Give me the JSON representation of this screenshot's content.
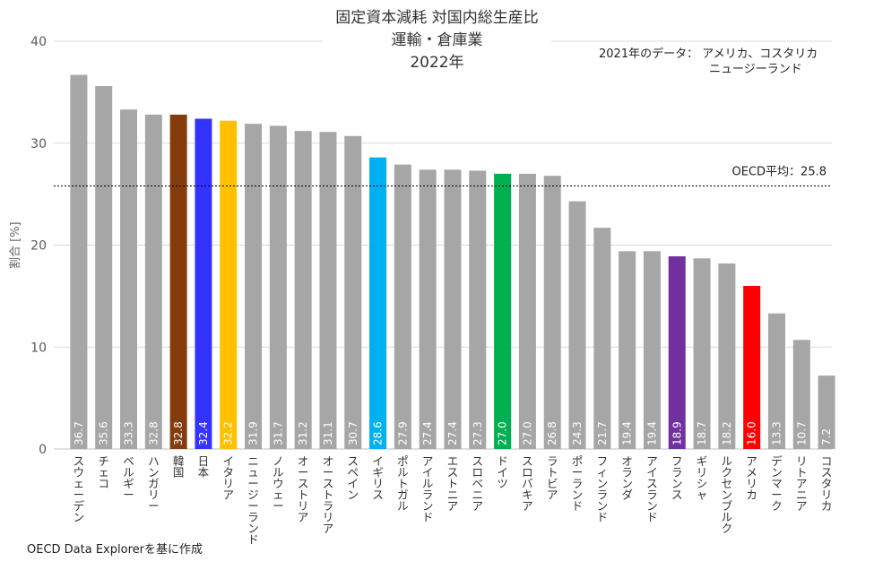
{
  "chart_data": {
    "type": "bar",
    "title_lines": [
      "固定資本減耗 対国内総生産比",
      "運輸・倉庫業",
      "2022年"
    ],
    "note_lines": [
      "2021年のデータ： アメリカ、コスタリカ",
      "ニュージーランド"
    ],
    "source": "OECD Data Explorerを基に作成",
    "ylabel": "割合 [%]",
    "xlabel": "",
    "ylim": [
      0,
      40
    ],
    "yticks": [
      0,
      10,
      20,
      30,
      40
    ],
    "grid": true,
    "reference_line": {
      "label": "OECD平均：25.8",
      "value": 25.8
    },
    "categories": [
      "スウェーデン",
      "チェコ",
      "ベルギー",
      "ハンガリー",
      "韓国",
      "日本",
      "イタリア",
      "ニュージーランド",
      "ノルウェー",
      "オーストリア",
      "オーストラリア",
      "スペイン",
      "イギリス",
      "ポルトガル",
      "アイルランド",
      "エストニア",
      "スロベニア",
      "ドイツ",
      "スロバキア",
      "ラトビア",
      "ポーランド",
      "フィンランド",
      "オランダ",
      "アイスランド",
      "フランス",
      "ギリシャ",
      "ルクセンブルク",
      "アメリカ",
      "デンマーク",
      "リトアニア",
      "コスタリカ"
    ],
    "values": [
      36.7,
      35.6,
      33.3,
      32.8,
      32.8,
      32.4,
      32.2,
      31.9,
      31.7,
      31.2,
      31.1,
      30.7,
      28.6,
      27.9,
      27.4,
      27.4,
      27.3,
      27.0,
      27.0,
      26.8,
      24.3,
      21.7,
      19.4,
      19.4,
      18.9,
      18.7,
      18.2,
      16.0,
      13.3,
      10.7,
      7.2
    ],
    "value_labels": [
      "36.7",
      "35.6",
      "33.3",
      "32.8",
      "32.8",
      "32.4",
      "32.2",
      "31.9",
      "31.7",
      "31.2",
      "31.1",
      "30.7",
      "28.6",
      "27.9",
      "27.4",
      "27.4",
      "27.3",
      "27.0",
      "27.0",
      "26.8",
      "24.3",
      "21.7",
      "19.4",
      "19.4",
      "18.9",
      "18.7",
      "18.2",
      "16.0",
      "13.3",
      "10.7",
      "7.2"
    ],
    "default_color": "#a6a6a6",
    "highlight_colors": {
      "韓国": "#843c0c",
      "日本": "#3333ff",
      "イタリア": "#ffc000",
      "イギリス": "#00b0f0",
      "ドイツ": "#00b050",
      "フランス": "#7030a0",
      "アメリカ": "#ff0000"
    }
  }
}
